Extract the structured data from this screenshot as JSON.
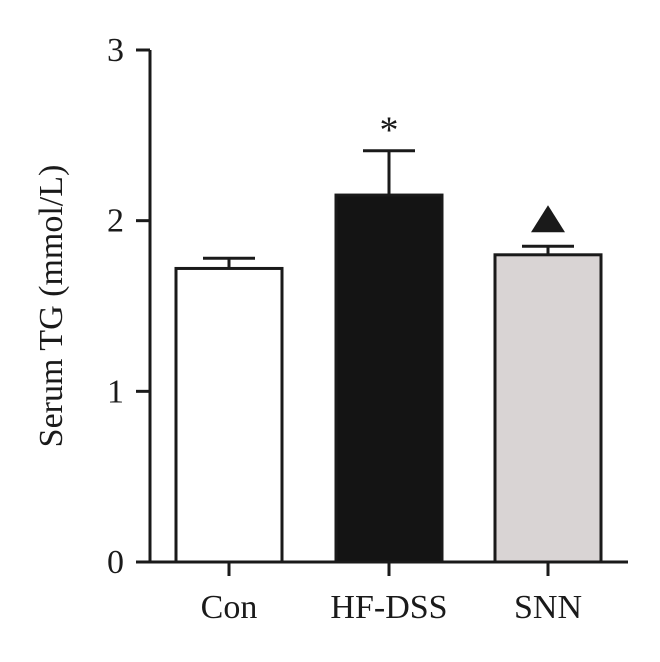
{
  "chart_data": {
    "type": "bar",
    "categories": [
      "Con",
      "HF-DSS",
      "SNN"
    ],
    "values": [
      1.72,
      2.15,
      1.8
    ],
    "errors": [
      0.06,
      0.26,
      0.05
    ],
    "bar_colors": [
      "#ffffff",
      "#141414",
      "#d9d4d4"
    ],
    "significance_marks": [
      "",
      "*",
      "triangle"
    ],
    "xlabel": "",
    "ylabel": "Serum TG (mmol/L)",
    "ylim": [
      0,
      3
    ],
    "yticks": [
      "0",
      "1",
      "2",
      "3"
    ],
    "grid": false
  }
}
